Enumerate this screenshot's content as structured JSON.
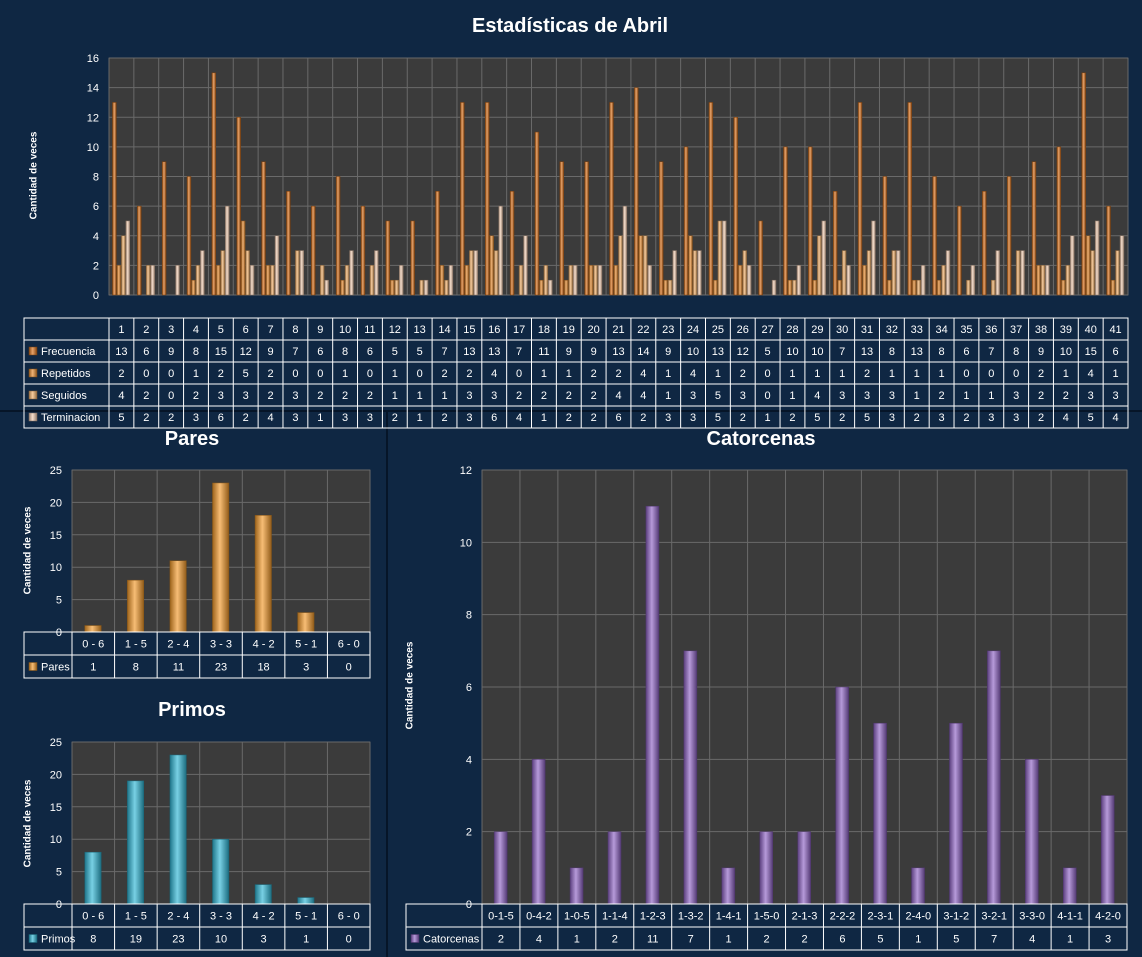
{
  "chart_data": [
    {
      "type": "bar",
      "title": "Estadísticas de Abril",
      "ylabel": "Cantidad de veces",
      "ylim": [
        0,
        16
      ],
      "yticks": [
        0,
        2,
        4,
        6,
        8,
        10,
        12,
        14,
        16
      ],
      "grid": true,
      "categories": [
        "1",
        "2",
        "3",
        "4",
        "5",
        "6",
        "7",
        "8",
        "9",
        "10",
        "11",
        "12",
        "13",
        "14",
        "15",
        "16",
        "17",
        "18",
        "19",
        "20",
        "21",
        "22",
        "23",
        "24",
        "25",
        "26",
        "27",
        "28",
        "29",
        "30",
        "31",
        "32",
        "33",
        "34",
        "35",
        "36",
        "37",
        "38",
        "39",
        "40",
        "41"
      ],
      "series": [
        {
          "name": "Frecuencia",
          "color": "#d8701a",
          "values": [
            13,
            6,
            9,
            8,
            15,
            12,
            9,
            7,
            6,
            8,
            6,
            5,
            5,
            7,
            13,
            13,
            7,
            11,
            9,
            9,
            13,
            14,
            9,
            10,
            13,
            12,
            5,
            10,
            10,
            7,
            13,
            8,
            13,
            8,
            6,
            7,
            8,
            9,
            10,
            15,
            6
          ]
        },
        {
          "name": "Repetidos",
          "color": "#e68a2e",
          "values": [
            2,
            0,
            0,
            1,
            2,
            5,
            2,
            0,
            0,
            1,
            0,
            1,
            0,
            2,
            2,
            4,
            0,
            1,
            1,
            2,
            2,
            4,
            1,
            4,
            1,
            2,
            0,
            1,
            1,
            1,
            2,
            1,
            1,
            1,
            0,
            0,
            0,
            2,
            1,
            4,
            1
          ]
        },
        {
          "name": "Seguidos",
          "color": "#f2b06a",
          "values": [
            4,
            2,
            0,
            2,
            3,
            3,
            2,
            3,
            2,
            2,
            2,
            1,
            1,
            1,
            3,
            3,
            2,
            2,
            2,
            2,
            4,
            4,
            1,
            3,
            5,
            3,
            0,
            1,
            4,
            3,
            3,
            3,
            1,
            2,
            1,
            1,
            3,
            2,
            2,
            3,
            3
          ]
        },
        {
          "name": "Terminacion",
          "color": "#f3cdb2",
          "values": [
            5,
            2,
            2,
            3,
            6,
            2,
            4,
            3,
            1,
            3,
            3,
            2,
            1,
            2,
            3,
            6,
            4,
            1,
            2,
            2,
            6,
            2,
            3,
            3,
            5,
            2,
            1,
            2,
            5,
            2,
            5,
            3,
            2,
            3,
            2,
            3,
            3,
            2,
            4,
            5,
            4
          ]
        }
      ]
    },
    {
      "type": "bar",
      "title": "Pares",
      "ylabel": "Cantidad de veces",
      "ylim": [
        0,
        25
      ],
      "yticks": [
        0,
        5,
        10,
        15,
        20,
        25
      ],
      "grid": true,
      "categories": [
        "0 - 6",
        "1 - 5",
        "2 - 4",
        "3 - 3",
        "4 - 2",
        "5 - 1",
        "6 - 0"
      ],
      "series": [
        {
          "name": "Pares",
          "color": "#f39a2a",
          "values": [
            1,
            8,
            11,
            23,
            18,
            3,
            0
          ]
        }
      ]
    },
    {
      "type": "bar",
      "title": "Primos",
      "ylabel": "Cantidad de veces",
      "ylim": [
        0,
        25
      ],
      "yticks": [
        0,
        5,
        10,
        15,
        20,
        25
      ],
      "grid": true,
      "categories": [
        "0 - 6",
        "1 - 5",
        "2 - 4",
        "3 - 3",
        "4 - 2",
        "5 - 1",
        "6 - 0"
      ],
      "series": [
        {
          "name": "Primos",
          "color": "#2fb6d6",
          "values": [
            8,
            19,
            23,
            10,
            3,
            1,
            0
          ]
        }
      ]
    },
    {
      "type": "bar",
      "title": "Catorcenas",
      "ylabel": "Cantidad de veces",
      "ylim": [
        0,
        12
      ],
      "yticks": [
        0,
        2,
        4,
        6,
        8,
        10,
        12
      ],
      "grid": true,
      "categories": [
        "0-1-5",
        "0-4-2",
        "1-0-5",
        "1-1-4",
        "1-2-3",
        "1-3-2",
        "1-4-1",
        "1-5-0",
        "2-1-3",
        "2-2-2",
        "2-3-1",
        "2-4-0",
        "3-1-2",
        "3-2-1",
        "3-3-0",
        "4-1-1",
        "4-2-0"
      ],
      "series": [
        {
          "name": "Catorcenas",
          "color": "#8e63c4",
          "values": [
            2,
            4,
            1,
            2,
            11,
            7,
            1,
            2,
            2,
            6,
            5,
            1,
            5,
            7,
            4,
            1,
            3
          ]
        }
      ]
    }
  ]
}
